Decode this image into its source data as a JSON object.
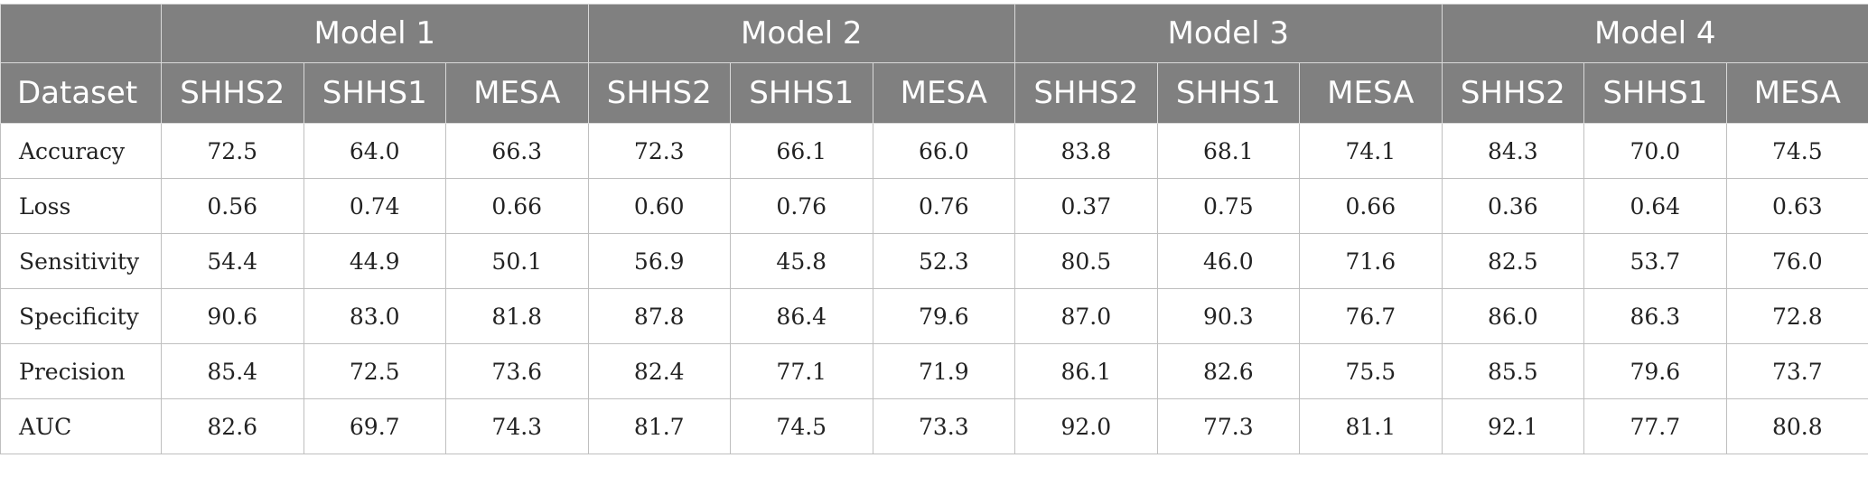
{
  "table": {
    "corner_label": "",
    "models": [
      "Model 1",
      "Model 2",
      "Model 3",
      "Model 4"
    ],
    "dataset_header": "Dataset",
    "datasets": [
      "SHHS2",
      "SHHS1",
      "MESA"
    ],
    "rows": [
      {
        "label": "Accuracy",
        "values": [
          "72.5",
          "64.0",
          "66.3",
          "72.3",
          "66.1",
          "66.0",
          "83.8",
          "68.1",
          "74.1",
          "84.3",
          "70.0",
          "74.5"
        ]
      },
      {
        "label": "Loss",
        "values": [
          "0.56",
          "0.74",
          "0.66",
          "0.60",
          "0.76",
          "0.76",
          "0.37",
          "0.75",
          "0.66",
          "0.36",
          "0.64",
          "0.63"
        ]
      },
      {
        "label": "Sensitivity",
        "values": [
          "54.4",
          "44.9",
          "50.1",
          "56.9",
          "45.8",
          "52.3",
          "80.5",
          "46.0",
          "71.6",
          "82.5",
          "53.7",
          "76.0"
        ]
      },
      {
        "label": "Specificity",
        "values": [
          "90.6",
          "83.0",
          "81.8",
          "87.8",
          "86.4",
          "79.6",
          "87.0",
          "90.3",
          "76.7",
          "86.0",
          "86.3",
          "72.8"
        ]
      },
      {
        "label": "Precision",
        "values": [
          "85.4",
          "72.5",
          "73.6",
          "82.4",
          "77.1",
          "71.9",
          "86.1",
          "82.6",
          "75.5",
          "85.5",
          "79.6",
          "73.7"
        ]
      },
      {
        "label": "AUC",
        "values": [
          "82.6",
          "69.7",
          "74.3",
          "81.7",
          "74.5",
          "73.3",
          "92.0",
          "77.3",
          "81.1",
          "92.1",
          "77.7",
          "80.8"
        ]
      }
    ]
  }
}
